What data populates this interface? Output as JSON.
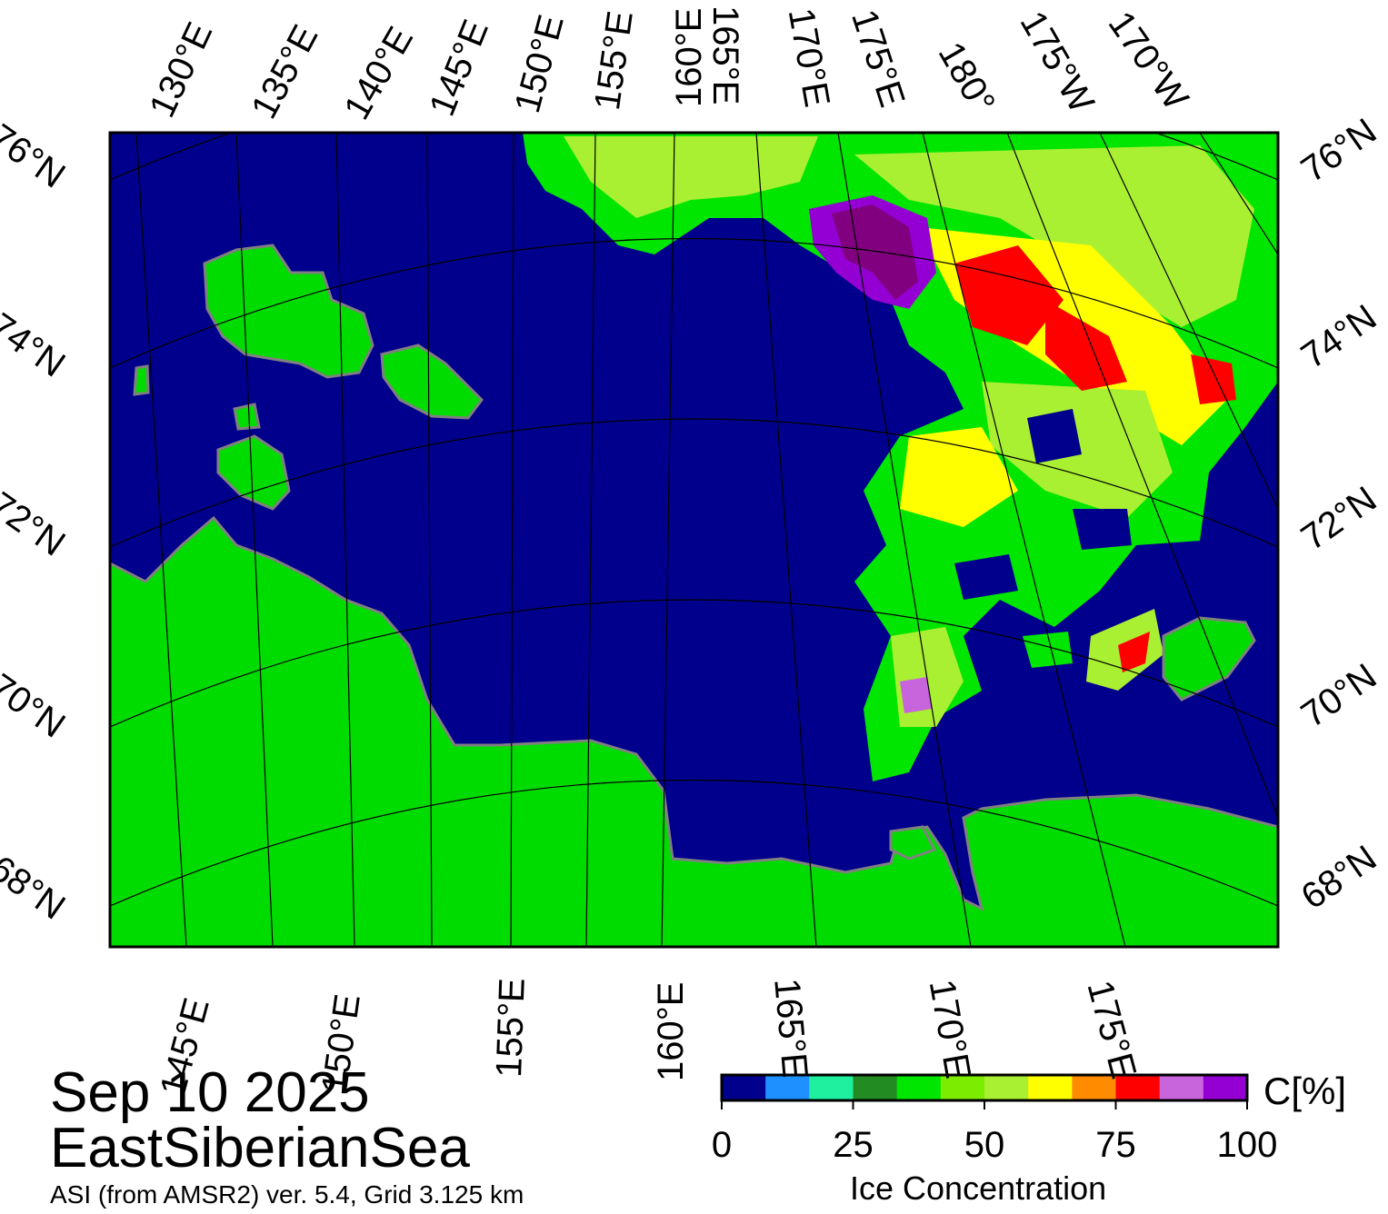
{
  "title": {
    "date": "Sep 10 2025",
    "region": "EastSiberianSea",
    "source": "ASI (from AMSR2) ver. 5.4,  Grid 3.125 km"
  },
  "map": {
    "ocean_color": "#00008c",
    "land_color": "#00dc00",
    "coast_color": "#808080",
    "graticule_color": "#000000",
    "top_lon_labels": [
      "130°E",
      "135°E",
      "140°E",
      "145°E",
      "150°E",
      "155°E",
      "160°E",
      "165°E",
      "170°E",
      "175°E",
      "180°",
      "175°W",
      "170°W"
    ],
    "bottom_lon_labels": [
      "145°E",
      "150°E",
      "155°E",
      "160°E",
      "165°E",
      "170°E",
      "175°E"
    ],
    "left_lat_labels": [
      "76°N",
      "74°N",
      "72°N",
      "70°N",
      "68°N"
    ],
    "right_lat_labels": [
      "76°N",
      "74°N",
      "72°N",
      "70°N",
      "68°N"
    ]
  },
  "colorbar": {
    "unit": "C[%]",
    "title": "Ice Concentration",
    "ticks": [
      "0",
      "25",
      "50",
      "75",
      "100"
    ],
    "colors": [
      "#00008c",
      "#1e90ff",
      "#1ef0a0",
      "#228b22",
      "#00e600",
      "#7ded00",
      "#aaf032",
      "#ffff00",
      "#ff8c00",
      "#ff0000",
      "#c864dc",
      "#9400d3"
    ]
  }
}
